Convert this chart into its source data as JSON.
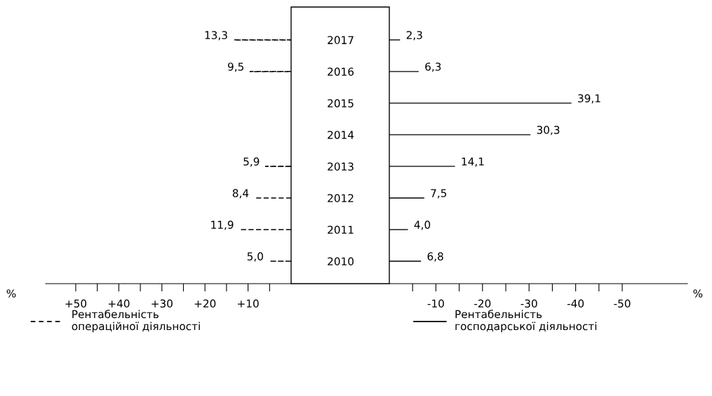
{
  "chart_data": [
    {
      "type": "bar",
      "orientation": "horizontal",
      "categories": [
        "2017",
        "2016",
        "2015",
        "2014",
        "2013",
        "2012",
        "2011",
        "2010"
      ],
      "xlabel": "%",
      "xlim": [
        57,
        0
      ],
      "xticks": [
        {
          "value": 50,
          "label": "+50"
        },
        {
          "value": 45,
          "label": null
        },
        {
          "value": 40,
          "label": "+40"
        },
        {
          "value": 35,
          "label": null
        },
        {
          "value": 30,
          "label": "+30"
        },
        {
          "value": 25,
          "label": null
        },
        {
          "value": 20,
          "label": "+20"
        },
        {
          "value": 15,
          "label": null
        },
        {
          "value": 10,
          "label": "+10"
        },
        {
          "value": 5,
          "label": null
        }
      ],
      "tick_labels": "x",
      "legend": "bottom",
      "series": [
        {
          "name": "Рентабельність операційної діяльності",
          "color": "#000000",
          "line_style": "dashed",
          "values": [
            13.3,
            9.5,
            null,
            null,
            5.9,
            8.4,
            11.9,
            5.0
          ],
          "value_labels": [
            "13,3",
            "9,5",
            null,
            null,
            "5,9",
            "8,4",
            "11,9",
            "5,0"
          ]
        }
      ]
    },
    {
      "type": "bar",
      "orientation": "horizontal",
      "categories": [
        "2017",
        "2016",
        "2015",
        "2014",
        "2013",
        "2012",
        "2011",
        "2010"
      ],
      "xlabel": "%",
      "xlim": [
        0,
        -64
      ],
      "xticks": [
        {
          "value": -5,
          "label": null
        },
        -10,
        {
          "value": -15,
          "label": null
        },
        -20,
        {
          "value": -25,
          "label": null
        },
        -30,
        {
          "value": -35,
          "label": null
        },
        -40,
        {
          "value": -45,
          "label": null
        },
        -50
      ],
      "legend": "bottom",
      "series": [
        {
          "name": "Рентабельність господарської діяльності",
          "color": "#000000",
          "line_style": "solid",
          "values": [
            -2.3,
            -6.3,
            -39.1,
            -30.3,
            -14.1,
            -7.5,
            -4.0,
            -6.8
          ]
        }
      ],
      "annotations": [
        {
          "text": "2,3",
          "x": -2.3,
          "y": "2017"
        },
        {
          "text": "6,3",
          "x": -6.3,
          "y": "2016"
        },
        {
          "text": "39,1",
          "x": -39.1,
          "y": "2015"
        },
        {
          "text": "30,3",
          "x": -30.3,
          "y": "2014"
        },
        {
          "text": "14,1",
          "x": -14.1,
          "y": "2013"
        },
        {
          "text": "7,5",
          "x": -7.5,
          "y": "2012"
        },
        {
          "text": "4,0",
          "x": -4.0,
          "y": "2011"
        },
        {
          "text": "6,8",
          "x": -6.8,
          "y": "2010"
        }
      ]
    }
  ]
}
